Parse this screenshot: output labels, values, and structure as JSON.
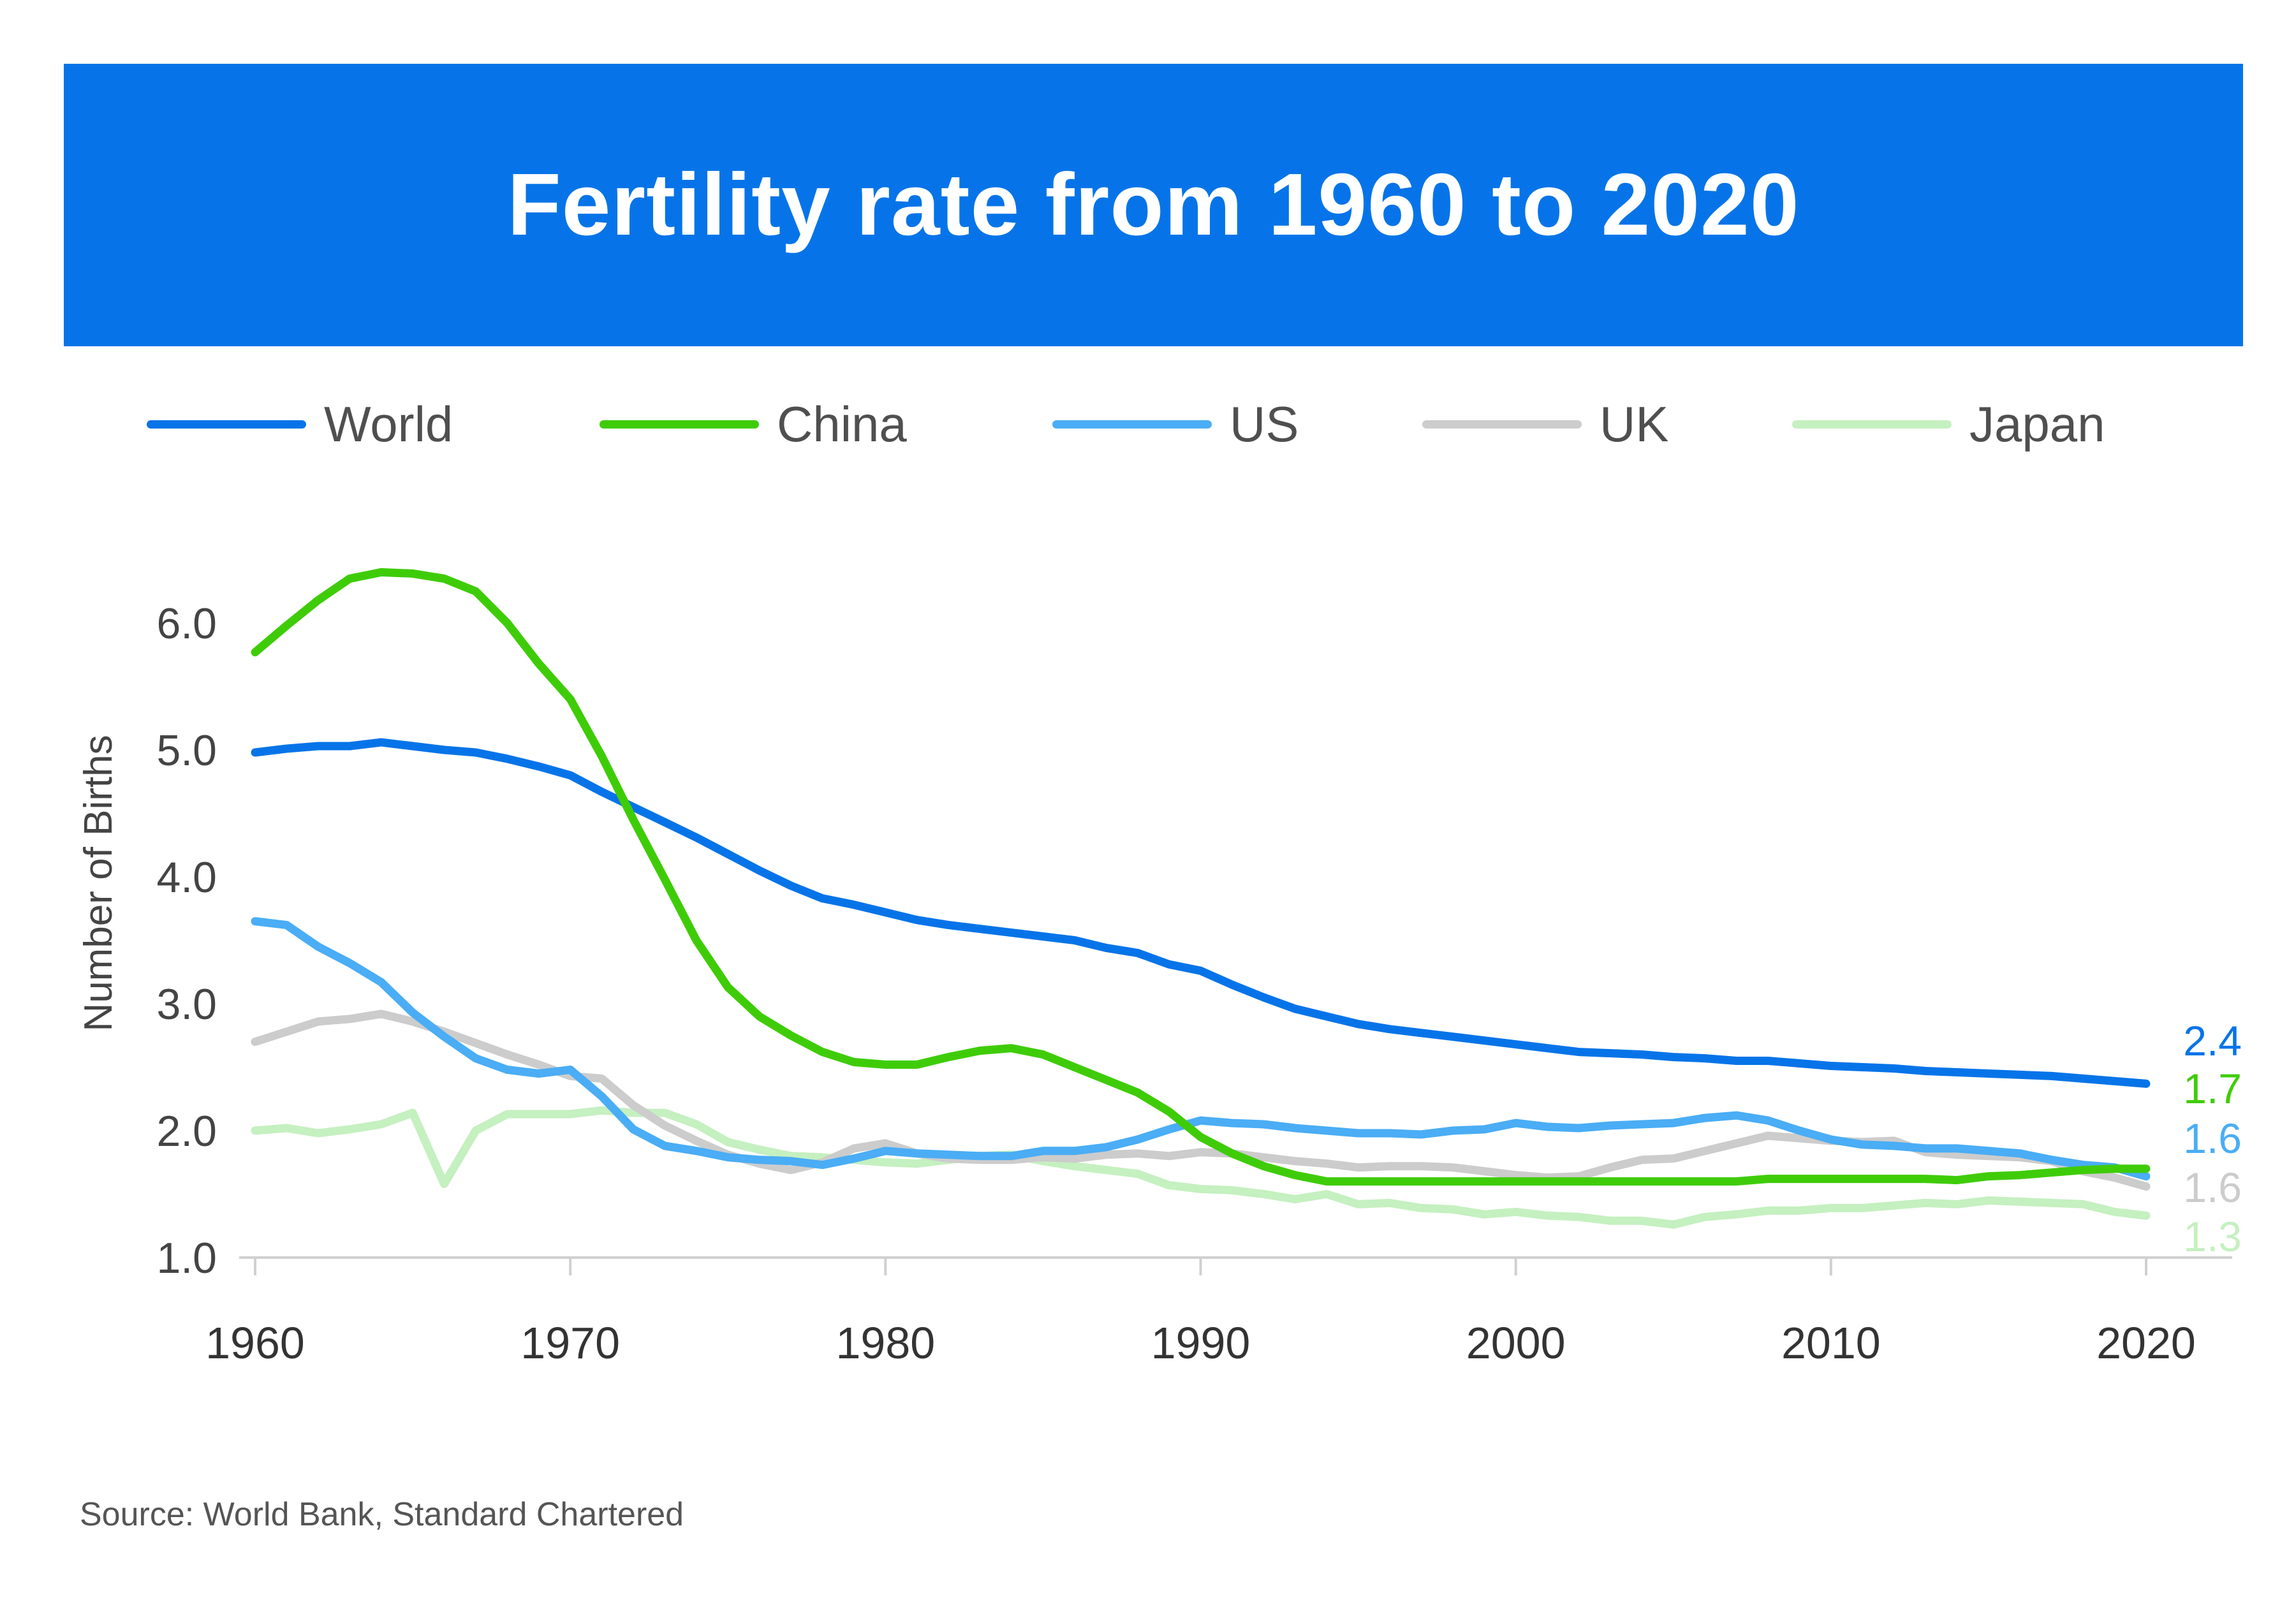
{
  "title": "Fertility rate from 1960 to 2020",
  "source": "Source: World Bank, Standard Chartered",
  "chart_data": {
    "type": "line",
    "title": "Fertility rate from 1960 to 2020",
    "xlabel": "",
    "ylabel": "Number of Births",
    "xlim": [
      1960,
      2020
    ],
    "ylim": [
      1.0,
      6.5
    ],
    "x_ticks": [
      "1960",
      "1970",
      "1980",
      "1990",
      "2000",
      "2010",
      "2020"
    ],
    "y_ticks": [
      "1.0",
      "2.0",
      "3.0",
      "4.0",
      "5.0",
      "6.0"
    ],
    "legend_position": "top",
    "x": [
      1960,
      1961,
      1962,
      1963,
      1964,
      1965,
      1966,
      1967,
      1968,
      1969,
      1970,
      1971,
      1972,
      1973,
      1974,
      1975,
      1976,
      1977,
      1978,
      1979,
      1980,
      1981,
      1982,
      1983,
      1984,
      1985,
      1986,
      1987,
      1988,
      1989,
      1990,
      1991,
      1992,
      1993,
      1994,
      1995,
      1996,
      1997,
      1998,
      1999,
      2000,
      2001,
      2002,
      2003,
      2004,
      2005,
      2006,
      2007,
      2008,
      2009,
      2010,
      2011,
      2012,
      2013,
      2014,
      2015,
      2016,
      2017,
      2018,
      2019,
      2020
    ],
    "series": [
      {
        "name": "World",
        "color": "#0674e8",
        "end_label": "2.4",
        "values": [
          4.98,
          5.01,
          5.03,
          5.03,
          5.06,
          5.03,
          5.0,
          4.98,
          4.93,
          4.87,
          4.8,
          4.67,
          4.55,
          4.43,
          4.31,
          4.18,
          4.05,
          3.93,
          3.83,
          3.78,
          3.72,
          3.66,
          3.62,
          3.59,
          3.56,
          3.53,
          3.5,
          3.44,
          3.4,
          3.31,
          3.26,
          3.15,
          3.05,
          2.96,
          2.9,
          2.84,
          2.8,
          2.77,
          2.74,
          2.71,
          2.68,
          2.65,
          2.62,
          2.61,
          2.6,
          2.58,
          2.57,
          2.55,
          2.55,
          2.53,
          2.51,
          2.5,
          2.49,
          2.47,
          2.46,
          2.45,
          2.44,
          2.43,
          2.41,
          2.39,
          2.37
        ]
      },
      {
        "name": "China",
        "color": "#3fcc08",
        "end_label": "1.7",
        "values": [
          5.77,
          5.98,
          6.18,
          6.35,
          6.4,
          6.39,
          6.35,
          6.25,
          6.0,
          5.68,
          5.4,
          4.95,
          4.45,
          3.98,
          3.5,
          3.13,
          2.9,
          2.75,
          2.62,
          2.54,
          2.52,
          2.52,
          2.58,
          2.63,
          2.65,
          2.6,
          2.5,
          2.4,
          2.3,
          2.15,
          1.95,
          1.82,
          1.72,
          1.65,
          1.6,
          1.6,
          1.6,
          1.6,
          1.6,
          1.6,
          1.6,
          1.6,
          1.6,
          1.6,
          1.6,
          1.6,
          1.6,
          1.6,
          1.62,
          1.62,
          1.62,
          1.62,
          1.62,
          1.62,
          1.61,
          1.64,
          1.65,
          1.67,
          1.69,
          1.7,
          1.7
        ]
      },
      {
        "name": "US",
        "color": "#4aadf5",
        "end_label": "1.6",
        "values": [
          3.65,
          3.62,
          3.45,
          3.32,
          3.17,
          2.93,
          2.74,
          2.57,
          2.48,
          2.45,
          2.48,
          2.27,
          2.01,
          1.88,
          1.84,
          1.79,
          1.77,
          1.76,
          1.73,
          1.78,
          1.84,
          1.82,
          1.81,
          1.8,
          1.8,
          1.84,
          1.84,
          1.87,
          1.93,
          2.01,
          2.08,
          2.06,
          2.05,
          2.02,
          2.0,
          1.98,
          1.98,
          1.97,
          2.0,
          2.01,
          2.06,
          2.03,
          2.02,
          2.04,
          2.05,
          2.06,
          2.1,
          2.12,
          2.08,
          2.0,
          1.93,
          1.89,
          1.88,
          1.86,
          1.86,
          1.84,
          1.82,
          1.77,
          1.73,
          1.71,
          1.64
        ]
      },
      {
        "name": "UK",
        "color": "#cccccc",
        "end_label": "1.6",
        "values": [
          2.7,
          2.78,
          2.86,
          2.88,
          2.92,
          2.86,
          2.78,
          2.69,
          2.6,
          2.52,
          2.43,
          2.41,
          2.2,
          2.04,
          1.92,
          1.81,
          1.74,
          1.69,
          1.75,
          1.86,
          1.9,
          1.82,
          1.78,
          1.77,
          1.77,
          1.79,
          1.78,
          1.81,
          1.82,
          1.8,
          1.83,
          1.82,
          1.79,
          1.76,
          1.74,
          1.71,
          1.72,
          1.72,
          1.71,
          1.68,
          1.65,
          1.63,
          1.64,
          1.71,
          1.77,
          1.78,
          1.84,
          1.9,
          1.96,
          1.94,
          1.92,
          1.91,
          1.92,
          1.83,
          1.81,
          1.8,
          1.79,
          1.76,
          1.68,
          1.63,
          1.56
        ]
      },
      {
        "name": "Japan",
        "color": "#c5f0c0",
        "end_label": "1.3",
        "values": [
          2.0,
          2.02,
          1.98,
          2.01,
          2.05,
          2.14,
          1.58,
          2.0,
          2.13,
          2.13,
          2.13,
          2.16,
          2.14,
          2.14,
          2.05,
          1.91,
          1.85,
          1.8,
          1.79,
          1.77,
          1.75,
          1.74,
          1.77,
          1.8,
          1.81,
          1.76,
          1.72,
          1.69,
          1.66,
          1.57,
          1.54,
          1.53,
          1.5,
          1.46,
          1.5,
          1.42,
          1.43,
          1.39,
          1.38,
          1.34,
          1.36,
          1.33,
          1.32,
          1.29,
          1.29,
          1.26,
          1.32,
          1.34,
          1.37,
          1.37,
          1.39,
          1.39,
          1.41,
          1.43,
          1.42,
          1.45,
          1.44,
          1.43,
          1.42,
          1.36,
          1.33
        ]
      }
    ]
  }
}
